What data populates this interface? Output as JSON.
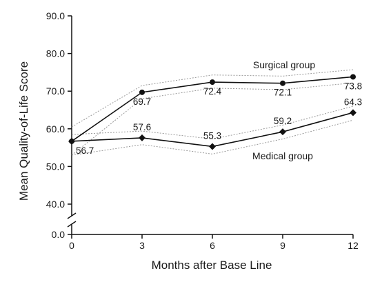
{
  "chart_data": {
    "type": "line",
    "xlabel": "Months after Base Line",
    "ylabel": "Mean Quality-of-Life Score",
    "x": [
      0,
      3,
      6,
      9,
      12
    ],
    "x_tick_labels": [
      "0",
      "3",
      "6",
      "9",
      "12"
    ],
    "y_tick_values": [
      0,
      40,
      50,
      60,
      70,
      80,
      90
    ],
    "y_tick_labels": [
      "0.0",
      "40.0",
      "50.0",
      "60.0",
      "70.0",
      "80.0",
      "90.0"
    ],
    "xlim": [
      0,
      12
    ],
    "ylim": [
      40,
      90
    ],
    "axis_break": true,
    "grid": false,
    "series": [
      {
        "name": "Surgical group",
        "marker": "circle",
        "values": [
          56.7,
          69.7,
          72.4,
          72.1,
          73.8
        ],
        "labels": [
          "56.7",
          "69.7",
          "72.4",
          "72.1",
          "73.8"
        ],
        "band_upper": [
          60.5,
          71.5,
          74.3,
          74.0,
          75.7
        ],
        "band_lower": [
          53.0,
          68.0,
          70.8,
          70.4,
          72.2
        ]
      },
      {
        "name": "Medical group",
        "marker": "diamond",
        "values": [
          56.7,
          57.6,
          55.3,
          59.2,
          64.3
        ],
        "labels": [
          "",
          "57.6",
          "55.3",
          "59.2",
          "64.3"
        ],
        "band_upper": [
          58.5,
          59.4,
          57.3,
          61.0,
          66.0
        ],
        "band_lower": [
          53.0,
          55.8,
          53.3,
          57.3,
          62.3
        ]
      }
    ],
    "colors": {
      "line": "#111111",
      "band": "#9a9a9a",
      "axis": "#111111"
    }
  }
}
